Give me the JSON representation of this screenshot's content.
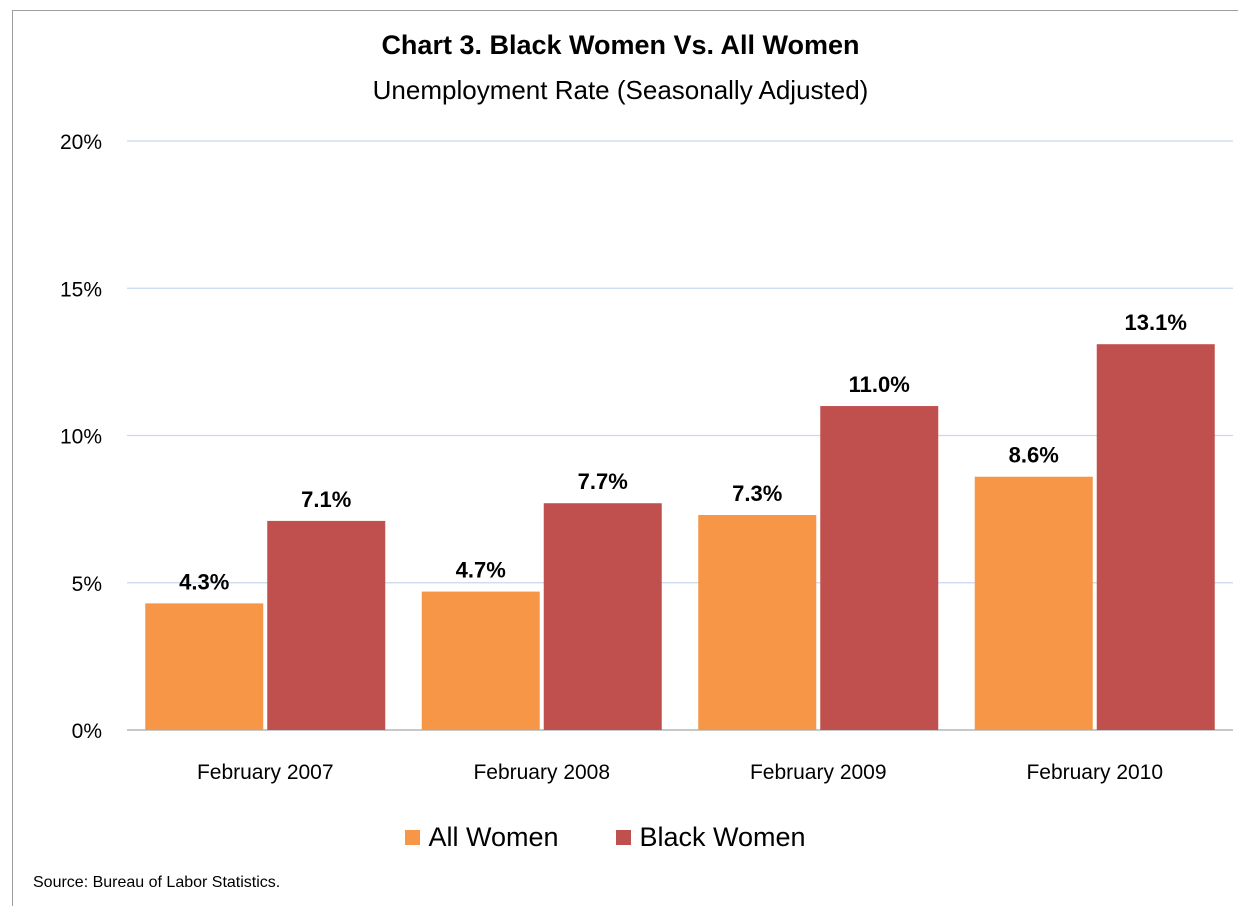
{
  "chart_data": {
    "type": "bar",
    "title": "Chart 3. Black Women Vs. All Women",
    "subtitle": "Unemployment Rate (Seasonally Adjusted)",
    "xlabel": "",
    "ylabel": "",
    "categories": [
      "February 2007",
      "February 2008",
      "February 2009",
      "February 2010"
    ],
    "series": [
      {
        "name": "All Women",
        "values": [
          4.3,
          4.7,
          7.3,
          8.6
        ],
        "color": "#f79646"
      },
      {
        "name": "Black Women",
        "values": [
          7.1,
          7.7,
          11.0,
          13.1
        ],
        "color": "#c0504d"
      }
    ],
    "data_labels": [
      [
        "4.3%",
        "4.7%",
        "7.3%",
        "8.6%"
      ],
      [
        "7.1%",
        "7.7%",
        "11.0%",
        "13.1%"
      ]
    ],
    "ylim": [
      0,
      20
    ],
    "yticks": [
      0,
      5,
      10,
      15,
      20
    ],
    "ytick_labels": [
      "0%",
      "5%",
      "10%",
      "15%",
      "20%"
    ],
    "grid": true,
    "grid_color": "#c6d9f1",
    "legend_position": "bottom"
  },
  "source": "Source: Bureau of Labor Statistics."
}
